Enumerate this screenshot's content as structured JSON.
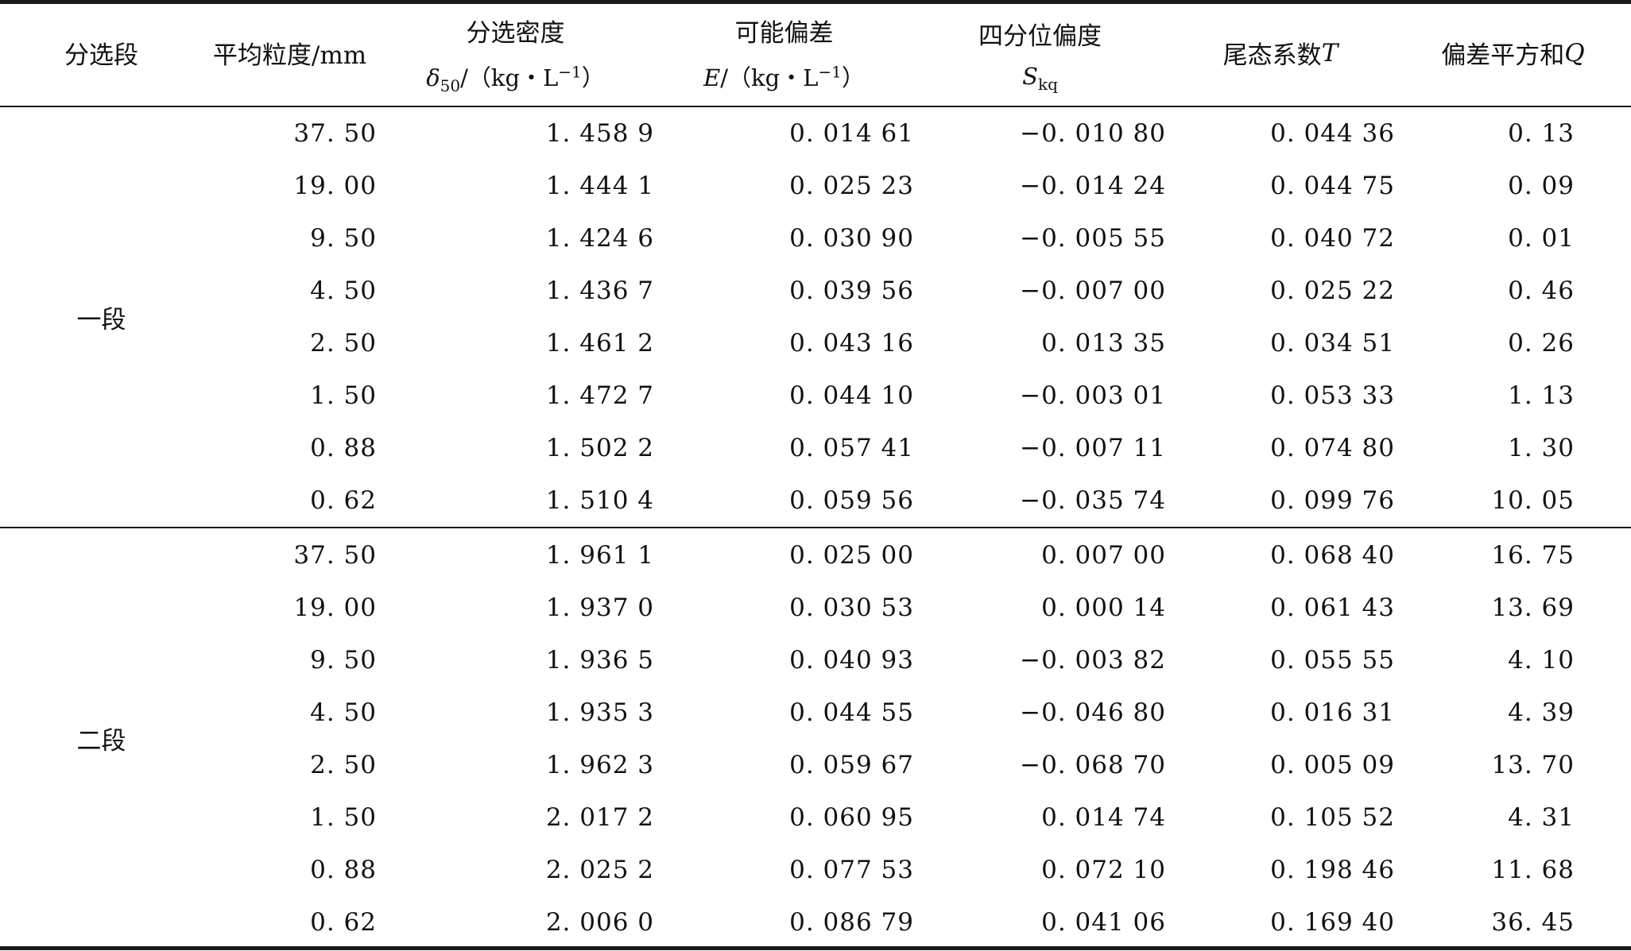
{
  "header": {
    "segment": "分选段",
    "size": "平均粒度/mm",
    "density_title": "分选密度",
    "density_sym": "δ",
    "density_sub": "50",
    "density_unit_pre": "/（kg・L",
    "density_unit_sup": "−1",
    "density_unit_post": "）",
    "error_title": "可能偏差",
    "error_sym": "E",
    "error_unit_pre": "/（kg・L",
    "error_unit_sup": "−1",
    "error_unit_post": "）",
    "skew_title": "四分位偏度",
    "skew_sym": "S",
    "skew_sub": "kq",
    "tail_title": "尾态系数 ",
    "tail_sym": "T",
    "dev_title": "偏差平方和 ",
    "dev_sym": "Q"
  },
  "groups": [
    {
      "label": "一段",
      "rows": [
        [
          "37. 50",
          "1. 458 9",
          "0. 014 61",
          "−0. 010 80",
          "0. 044 36",
          "0. 13"
        ],
        [
          "19. 00",
          "1. 444 1",
          "0. 025 23",
          "−0. 014 24",
          "0. 044 75",
          "0. 09"
        ],
        [
          "9. 50",
          "1. 424 6",
          "0. 030 90",
          "−0. 005 55",
          "0. 040 72",
          "0. 01"
        ],
        [
          "4. 50",
          "1. 436 7",
          "0. 039 56",
          "−0. 007 00",
          "0. 025 22",
          "0. 46"
        ],
        [
          "2. 50",
          "1. 461 2",
          "0. 043 16",
          "0. 013 35",
          "0. 034 51",
          "0. 26"
        ],
        [
          "1. 50",
          "1. 472 7",
          "0. 044 10",
          "−0. 003 01",
          "0. 053 33",
          "1. 13"
        ],
        [
          "0. 88",
          "1. 502 2",
          "0. 057 41",
          "−0. 007 11",
          "0. 074 80",
          "1. 30"
        ],
        [
          "0. 62",
          "1. 510 4",
          "0. 059 56",
          "−0. 035 74",
          "0. 099 76",
          "10. 05"
        ]
      ]
    },
    {
      "label": "二段",
      "rows": [
        [
          "37. 50",
          "1. 961 1",
          "0. 025 00",
          "0. 007 00",
          "0. 068 40",
          "16. 75"
        ],
        [
          "19. 00",
          "1. 937 0",
          "0. 030 53",
          "0. 000 14",
          "0. 061 43",
          "13. 69"
        ],
        [
          "9. 50",
          "1. 936 5",
          "0. 040 93",
          "−0. 003 82",
          "0. 055 55",
          "4. 10"
        ],
        [
          "4. 50",
          "1. 935 3",
          "0. 044 55",
          "−0. 046 80",
          "0. 016 31",
          "4. 39"
        ],
        [
          "2. 50",
          "1. 962 3",
          "0. 059 67",
          "−0. 068 70",
          "0. 005 09",
          "13. 70"
        ],
        [
          "1. 50",
          "2. 017 2",
          "0. 060 95",
          "0. 014 74",
          "0. 105 52",
          "4. 31"
        ],
        [
          "0. 88",
          "2. 025 2",
          "0. 077 53",
          "0. 072 10",
          "0. 198 46",
          "11. 68"
        ],
        [
          "0. 62",
          "2. 006 0",
          "0. 086 79",
          "0. 041 06",
          "0. 169 40",
          "36. 45"
        ]
      ]
    }
  ]
}
